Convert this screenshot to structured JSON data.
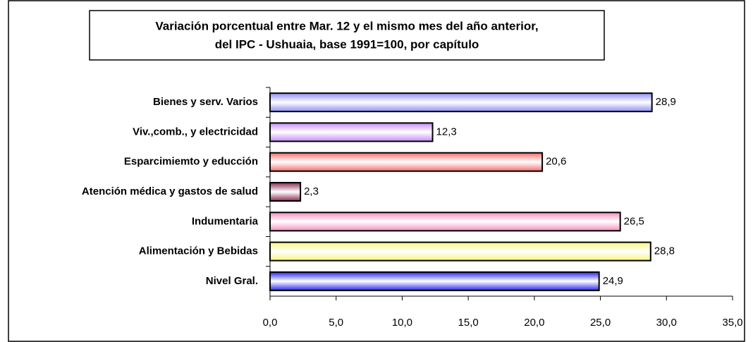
{
  "chart_data": {
    "type": "bar",
    "orientation": "horizontal",
    "title": [
      "Variación porcentual entre Mar. 12 y el mismo  mes del año anterior,",
      "del IPC - Ushuaia, base 1991=100, por capítulo"
    ],
    "categories": [
      "Bienes y serv. Varios",
      "Viv.,comb., y electricidad",
      "Esparcimiemto y educción",
      "Atención médica y gastos de salud",
      "Indumentaria",
      "Alimentación y Bebidas",
      "Nivel Gral."
    ],
    "values": [
      28.9,
      12.3,
      20.6,
      2.3,
      26.5,
      28.8,
      24.9
    ],
    "value_labels": [
      "28,9",
      "12,3",
      "20,6",
      "2,3",
      "26,5",
      "28,8",
      "24,9"
    ],
    "colors": [
      "#8f8ff5",
      "#c58cf5",
      "#f76e6e",
      "#8a2a50",
      "#f58cbe",
      "#f7f77a",
      "#2828f0"
    ],
    "xlim": [
      0,
      35
    ],
    "xticks": [
      {
        "value": 0,
        "label": "0,0"
      },
      {
        "value": 5,
        "label": "5,0"
      },
      {
        "value": 10,
        "label": "10,0"
      },
      {
        "value": 15,
        "label": "15,0"
      },
      {
        "value": 20,
        "label": "20,0"
      },
      {
        "value": 25,
        "label": "25,0"
      },
      {
        "value": 30,
        "label": "30,0"
      },
      {
        "value": 35,
        "label": "35,0"
      }
    ],
    "grid": false
  }
}
